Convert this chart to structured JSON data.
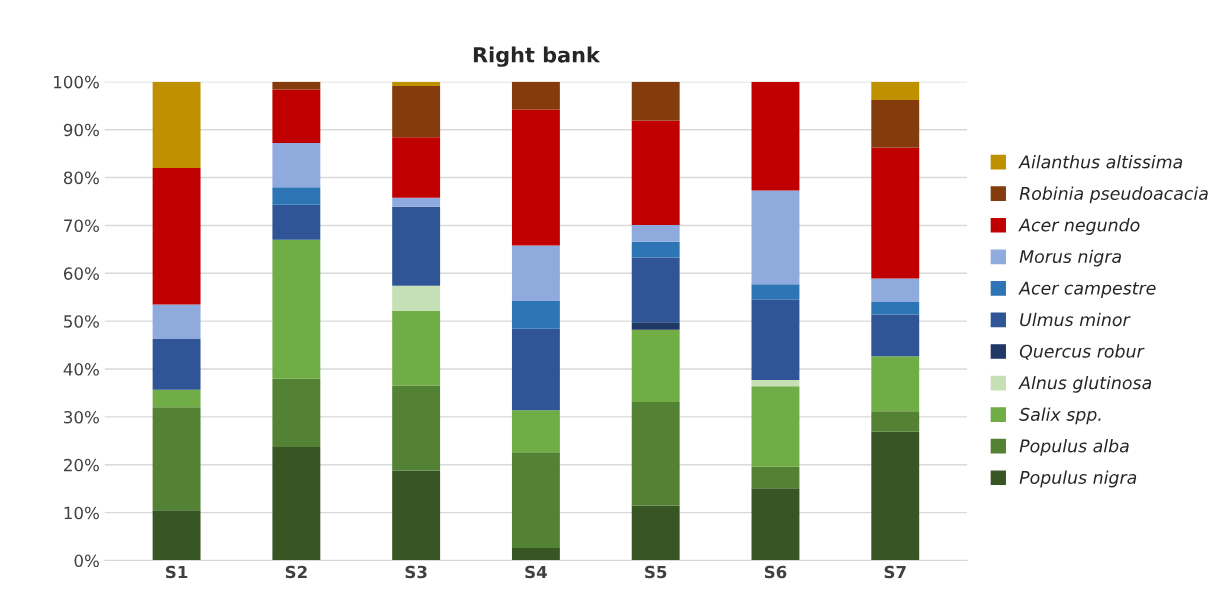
{
  "chart_data": {
    "type": "bar",
    "title": "Right bank",
    "stacked": true,
    "grid": "y",
    "legend": "right",
    "categories": [
      "S1",
      "S2",
      "S3",
      "S4",
      "S5",
      "S6",
      "S7"
    ],
    "ylim": [
      0,
      100
    ],
    "yticks": [
      {
        "value": 0,
        "label": "0%"
      },
      {
        "value": 10,
        "label": "10%"
      },
      {
        "value": 20,
        "label": "20%"
      },
      {
        "value": 30,
        "label": "30%"
      },
      {
        "value": 40,
        "label": "40%"
      },
      {
        "value": 50,
        "label": "50%"
      },
      {
        "value": 60,
        "label": "60%"
      },
      {
        "value": 70,
        "label": "70%"
      },
      {
        "value": 80,
        "label": "80%"
      },
      {
        "value": 90,
        "label": "90%"
      },
      {
        "value": 100,
        "label": "100%"
      }
    ],
    "series": [
      {
        "name": "Populus nigra",
        "color": "#375623",
        "values": [
          10.5,
          23.7,
          18.8,
          2.6,
          11.5,
          15.1,
          26.9
        ]
      },
      {
        "name": "Populus alba",
        "color": "#548235",
        "values": [
          21.5,
          14.3,
          17.7,
          20,
          21.6,
          4.5,
          4.3
        ]
      },
      {
        "name": "Salix spp.",
        "color": "#70ad47",
        "values": [
          3.7,
          29,
          15.7,
          8.8,
          15.1,
          16.8,
          11.5
        ]
      },
      {
        "name": "Alnus glutinosa",
        "color": "#c5e0b4",
        "values": [
          0,
          0,
          5.2,
          0,
          0,
          1.3,
          0
        ]
      },
      {
        "name": "Quercus robur",
        "color": "#203864",
        "values": [
          0,
          0,
          0,
          0,
          1.6,
          0,
          0
        ]
      },
      {
        "name": "Ulmus minor",
        "color": "#2f5597",
        "values": [
          10.6,
          7.3,
          16.5,
          17,
          13.5,
          16.8,
          8.7
        ]
      },
      {
        "name": "Acer campestre",
        "color": "#2e75b6",
        "values": [
          0,
          3.7,
          0,
          5.8,
          3.3,
          3.2,
          2.6
        ]
      },
      {
        "name": "Morus nigra",
        "color": "#8faadc",
        "values": [
          7.2,
          9.2,
          1.9,
          11.6,
          3.5,
          19.6,
          4.9
        ]
      },
      {
        "name": "Acer negundo",
        "color": "#c00000",
        "values": [
          28.5,
          11.2,
          12.6,
          28.4,
          21.8,
          22.7,
          27.4
        ]
      },
      {
        "name": "Robinia pseudoacacia",
        "color": "#843c0c",
        "values": [
          0,
          1.6,
          10.7,
          5.8,
          8.1,
          0,
          9.9
        ]
      },
      {
        "name": "Ailanthus altissima",
        "color": "#bf9000",
        "values": [
          18,
          0,
          0.9,
          0,
          0,
          0,
          3.8
        ]
      }
    ]
  }
}
